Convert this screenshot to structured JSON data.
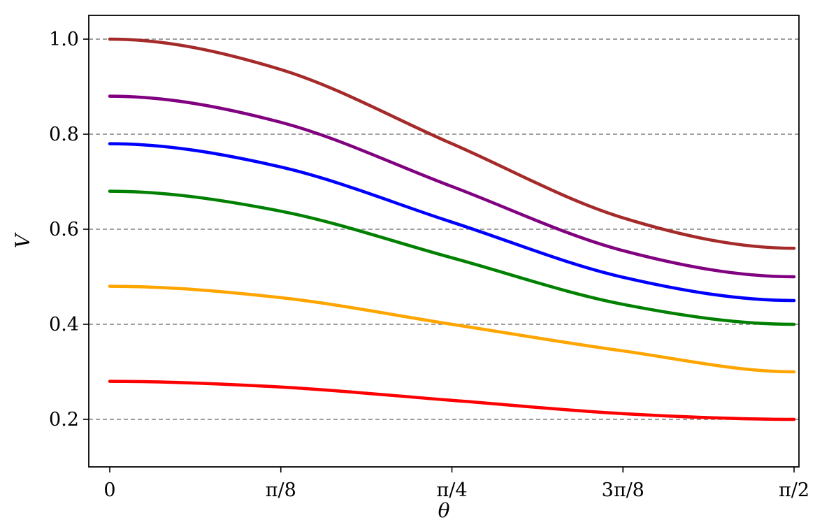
{
  "chart_data": {
    "type": "line",
    "xlabel": "θ",
    "ylabel": "V",
    "xlim": [
      0,
      1.5708
    ],
    "ylim": [
      0.1,
      1.05
    ],
    "x_ticks": [
      {
        "value": 0,
        "label": "0"
      },
      {
        "value": 0.3927,
        "label": "π/8"
      },
      {
        "value": 0.7854,
        "label": "π/4"
      },
      {
        "value": 1.1781,
        "label": "3π/8"
      },
      {
        "value": 1.5708,
        "label": "π/2"
      }
    ],
    "y_ticks": [
      {
        "value": 0.2,
        "label": "0.2"
      },
      {
        "value": 0.4,
        "label": "0.4"
      },
      {
        "value": 0.6,
        "label": "0.6"
      },
      {
        "value": 0.8,
        "label": "0.8"
      },
      {
        "value": 1.0,
        "label": "1.0"
      }
    ],
    "grid": "horizontal-dashed",
    "legend": "none",
    "series": [
      {
        "color": "#ff0000",
        "x": [
          0,
          0.3927,
          0.7854,
          1.1781,
          1.5708
        ],
        "values": [
          0.28,
          0.268,
          0.24,
          0.212,
          0.2
        ]
      },
      {
        "color": "#ffa500",
        "x": [
          0,
          0.3927,
          0.7854,
          1.1781,
          1.5708
        ],
        "values": [
          0.48,
          0.456,
          0.4,
          0.344,
          0.3
        ]
      },
      {
        "color": "#008000",
        "x": [
          0,
          0.3927,
          0.7854,
          1.1781,
          1.5708
        ],
        "values": [
          0.68,
          0.638,
          0.54,
          0.442,
          0.4
        ]
      },
      {
        "color": "#0000ff",
        "x": [
          0,
          0.3927,
          0.7854,
          1.1781,
          1.5708
        ],
        "values": [
          0.78,
          0.731,
          0.615,
          0.499,
          0.45
        ]
      },
      {
        "color": "#800080",
        "x": [
          0,
          0.3927,
          0.7854,
          1.1781,
          1.5708
        ],
        "values": [
          0.88,
          0.825,
          0.69,
          0.555,
          0.5
        ]
      },
      {
        "color": "#a52a2a",
        "x": [
          0,
          0.3927,
          0.7854,
          1.1781,
          1.5708
        ],
        "values": [
          1.0,
          0.936,
          0.78,
          0.624,
          0.56
        ]
      }
    ]
  }
}
